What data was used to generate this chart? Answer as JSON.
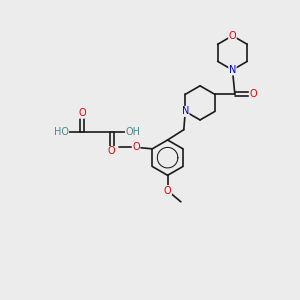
{
  "background_color": "#ececec",
  "figsize": [
    3.0,
    3.0
  ],
  "dpi": 100,
  "bond_color": "#1a1a1a",
  "bond_lw": 1.2,
  "atom_colors": {
    "O": "#ee0000",
    "N": "#0000cc",
    "C": "#1a1a1a",
    "H": "#4a8888"
  },
  "font_size": 7.0,
  "font_size_small": 6.0
}
